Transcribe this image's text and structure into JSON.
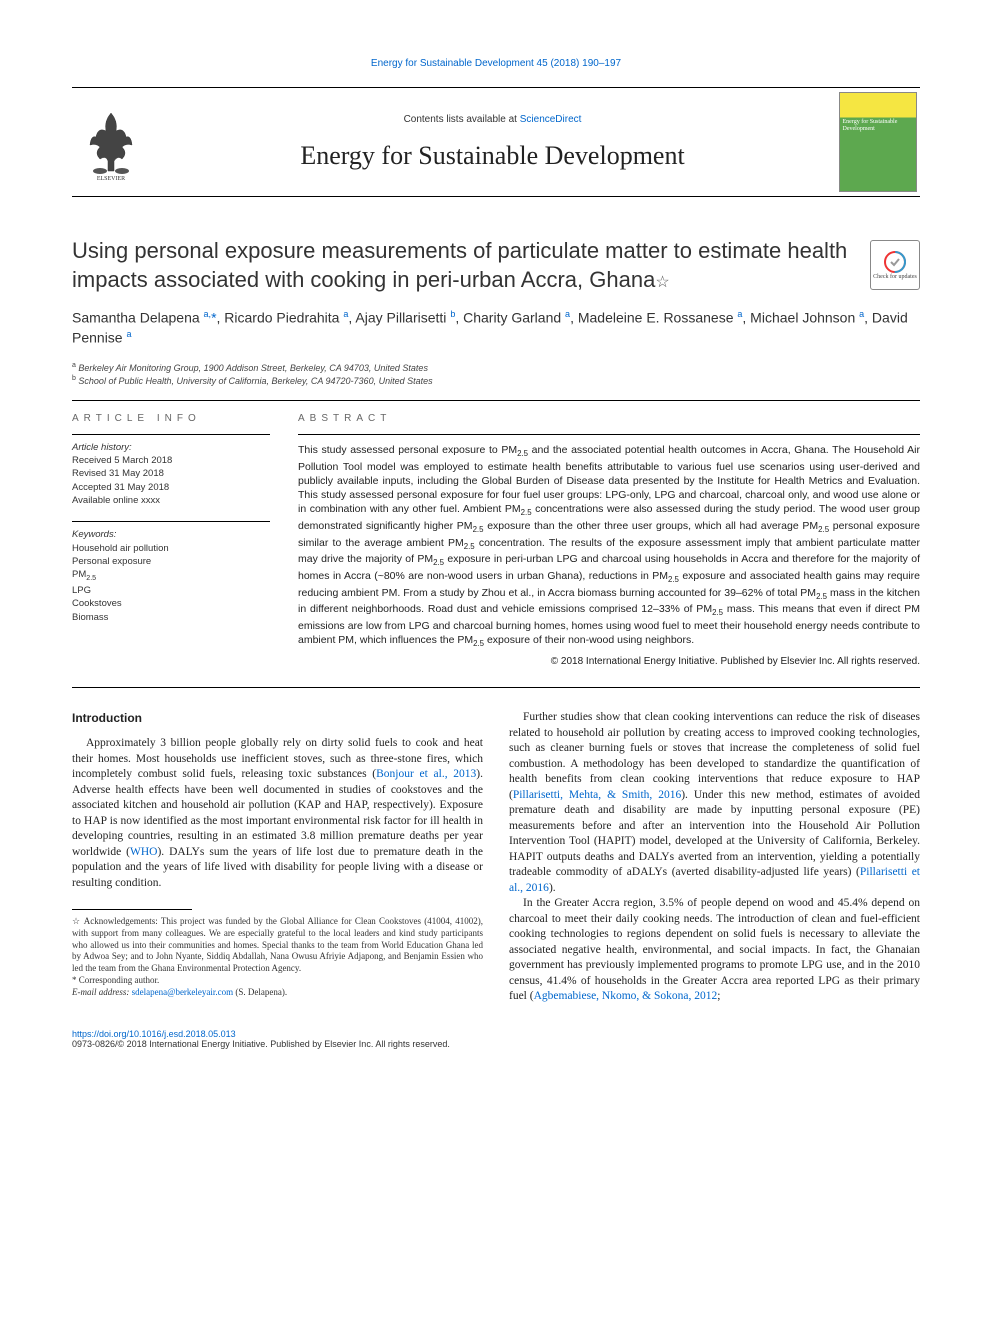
{
  "journal_link": {
    "text": "Energy for Sustainable Development 45 (2018) 190–197",
    "url": "Energy for Sustainable Development 45 (2018) 190–197"
  },
  "masthead": {
    "contents_prefix": "Contents lists available at ",
    "contents_link": "ScienceDirect",
    "journal_title": "Energy for Sustainable Development"
  },
  "check_updates_label": "Check for updates",
  "article": {
    "title": "Using personal exposure measurements of particulate matter to estimate health impacts associated with cooking in peri-urban Accra, Ghana",
    "star": "☆",
    "authors_html": "Samantha Delapena <sup>a,</sup><span class='corr'>*</span>, Ricardo Piedrahita <sup>a</sup>, Ajay Pillarisetti <sup>b</sup>, Charity Garland <sup>a</sup>, Madeleine E. Rossanese <sup>a</sup>, Michael Johnson <sup>a</sup>, David Pennise <sup>a</sup>",
    "affiliations": [
      "Berkeley Air Monitoring Group, 1900 Addison Street, Berkeley, CA 94703, United States",
      "School of Public Health, University of California, Berkeley, CA 94720-7360, United States"
    ],
    "aff_markers": [
      "a",
      "b"
    ]
  },
  "article_info_label": "ARTICLE INFO",
  "abstract_label": "ABSTRACT",
  "history": {
    "heading": "Article history:",
    "lines": [
      "Received 5 March 2018",
      "Revised 31 May 2018",
      "Accepted 31 May 2018",
      "Available online xxxx"
    ]
  },
  "keywords": {
    "heading": "Keywords:",
    "items": [
      "Household air pollution",
      "Personal exposure",
      "PM2.5",
      "LPG",
      "Cookstoves",
      "Biomass"
    ]
  },
  "abstract_html": "This study assessed personal exposure to PM<sub>2.5</sub> and the associated potential health outcomes in Accra, Ghana. The Household Air Pollution Tool model was employed to estimate health benefits attributable to various fuel use scenarios using user-derived and publicly available inputs, including the Global Burden of Disease data presented by the Institute for Health Metrics and Evaluation. This study assessed personal exposure for four fuel user groups: LPG-only, LPG and charcoal, charcoal only, and wood use alone or in combination with any other fuel. Ambient PM<sub>2.5</sub> concentrations were also assessed during the study period. The wood user group demonstrated significantly higher PM<sub>2.5</sub> exposure than the other three user groups, which all had average PM<sub>2.5</sub> personal exposure similar to the average ambient PM<sub>2.5</sub> concentration. The results of the exposure assessment imply that ambient particulate matter may drive the majority of PM<sub>2.5</sub> exposure in peri-urban LPG and charcoal using households in Accra and therefore for the majority of homes in Accra (~80% are non-wood users in urban Ghana), reductions in PM<sub>2.5</sub> exposure and associated health gains may require reducing ambient PM. From a study by Zhou et al., in Accra biomass burning accounted for 39–62% of total PM<sub>2.5</sub> mass in the kitchen in different neighborhoods. Road dust and vehicle emissions comprised 12–33% of PM<sub>2.5</sub> mass. This means that even if direct PM emissions are low from LPG and charcoal burning homes, homes using wood fuel to meet their household energy needs contribute to ambient PM, which influences the PM<sub>2.5</sub> exposure of their non-wood using neighbors.",
  "copyright": "© 2018 International Energy Initiative. Published by Elsevier Inc. All rights reserved.",
  "body": {
    "intro_heading": "Introduction",
    "col1": {
      "p1_html": "Approximately 3 billion people globally rely on dirty solid fuels to cook and heat their homes. Most households use inefficient stoves, such as three-stone fires, which incompletely combust solid fuels, releasing toxic substances (<span class='cite'>Bonjour et al., 2013</span>). Adverse health effects have been well documented in studies of cookstoves and the associated kitchen and household air pollution (KAP and HAP, respectively). Exposure to HAP is now identified as the most important environmental risk factor for ill health in developing countries, resulting in an estimated 3.8 million premature deaths per year worldwide (<span class='cite'>WHO</span>). DALYs sum the years of life lost due to premature death in the population and the years of life lived with disability for people living with a disease or resulting condition."
    },
    "col2": {
      "p1_html": "Further studies show that clean cooking interventions can reduce the risk of diseases related to household air pollution by creating access to improved cooking technologies, such as cleaner burning fuels or stoves that increase the completeness of solid fuel combustion. A methodology has been developed to standardize the quantification of health benefits from clean cooking interventions that reduce exposure to HAP (<span class='cite'>Pillarisetti, Mehta, &amp; Smith, 2016</span>). Under this new method, estimates of avoided premature death and disability are made by inputting personal exposure (PE) measurements before and after an intervention into the Household Air Pollution Intervention Tool (HAPIT) model, developed at the University of California, Berkeley. HAPIT outputs deaths and DALYs averted from an intervention, yielding a potentially tradeable commodity of aDALYs (averted disability-adjusted life years) (<span class='cite'>Pillarisetti et al., 2016</span>).",
      "p2_html": "In the Greater Accra region, 3.5% of people depend on wood and 45.4% depend on charcoal to meet their daily cooking needs. The introduction of clean and fuel-efficient cooking technologies to regions dependent on solid fuels is necessary to alleviate the associated negative health, environmental, and social impacts. In fact, the Ghanaian government has previously implemented programs to promote LPG use, and in the 2010 census, 41.4% of households in the Greater Accra area reported LPG as their primary fuel (<span class='cite'>Agbemabiese, Nkomo, &amp; Sokona, 2012</span>;"
    }
  },
  "footnotes": {
    "ack_html": "☆ Acknowledgements: This project was funded by the Global Alliance for Clean Cookstoves (41004, 41002), with support from many colleagues. We are especially grateful to the local leaders and kind study participants who allowed us into their communities and homes. Special thanks to the team from World Education Ghana led by Adwoa Sey; and to John Nyante, Siddiq Abdallah, Nana Owusu Afriyie Adjapong, and Benjamin Essien who led the team from the Ghana Environmental Protection Agency.",
    "corr": "* Corresponding author.",
    "email_label": "E-mail address:",
    "email": "sdelapena@berkeleyair.com",
    "email_suffix": " (S. Delapena)."
  },
  "footer": {
    "doi": "https://doi.org/10.1016/j.esd.2018.05.013",
    "issn_line": "0973-0826/© 2018 International Energy Initiative. Published by Elsevier Inc. All rights reserved."
  }
}
